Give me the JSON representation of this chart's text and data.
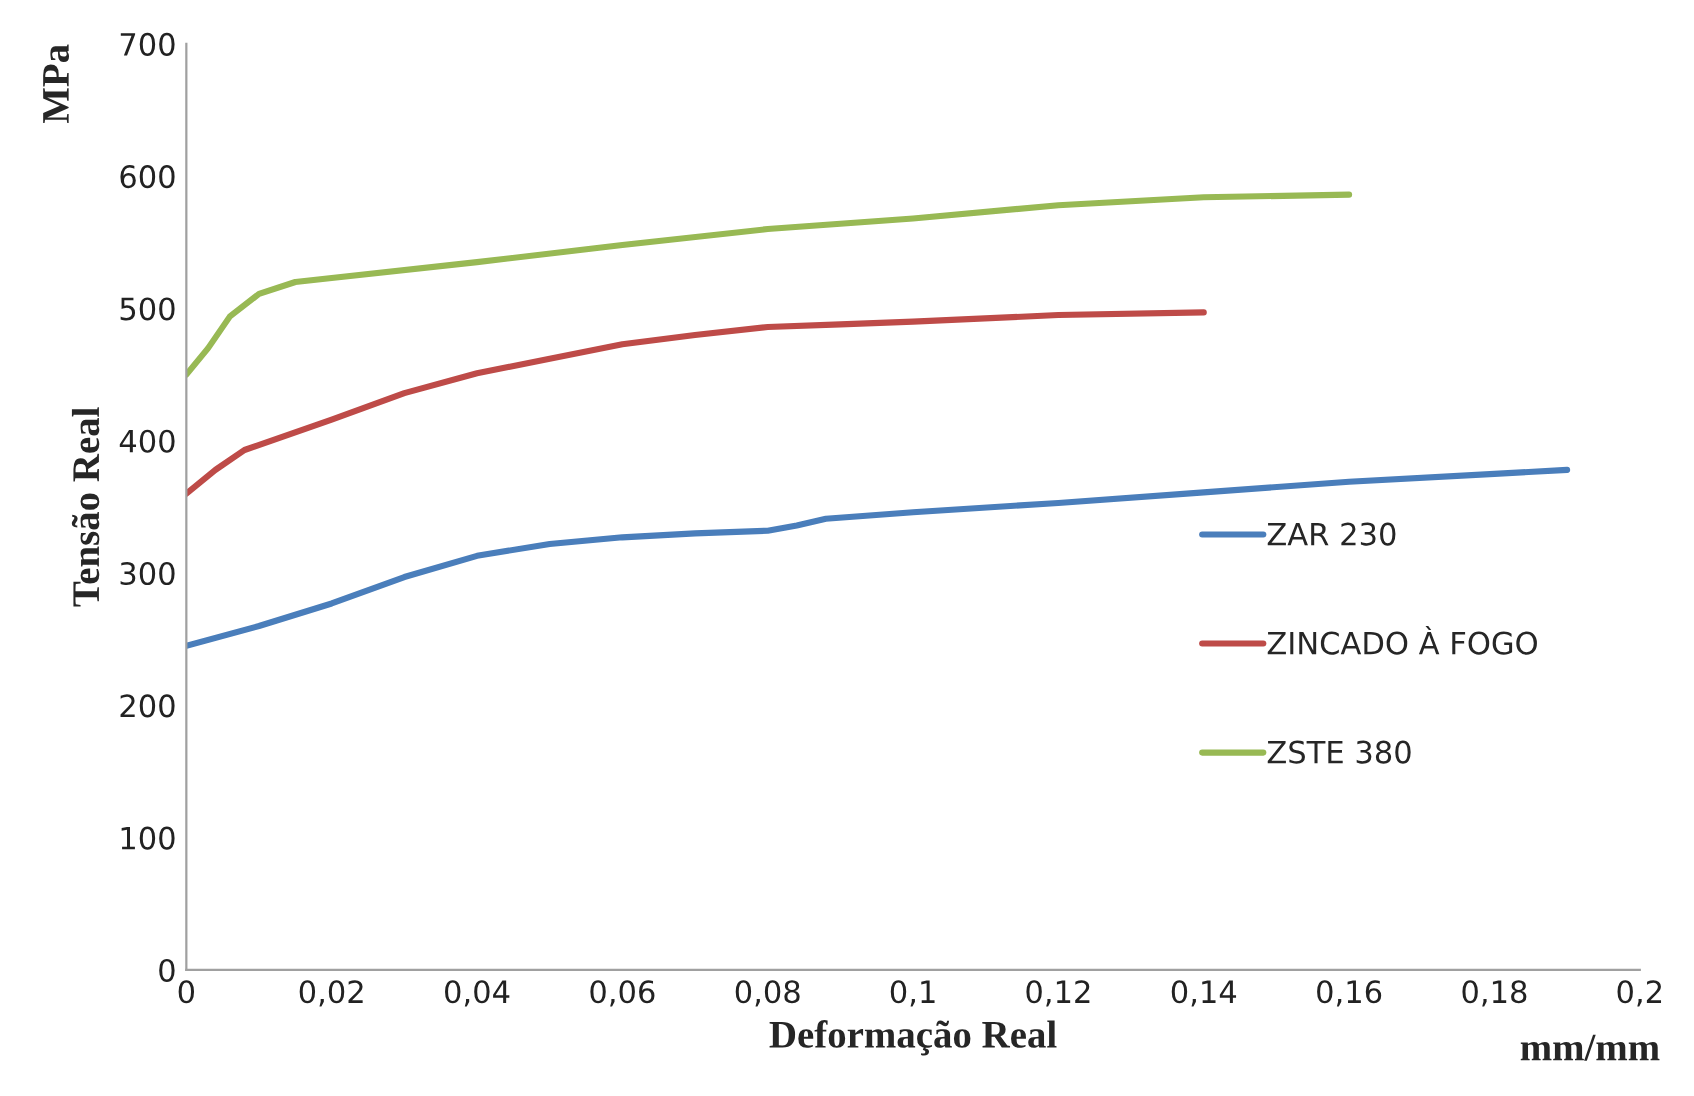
{
  "chart_data": {
    "type": "line",
    "xlabel": "Deformação Real",
    "ylabel": "Tensão Real",
    "annotations": [
      "MPa",
      "mm/mm"
    ],
    "series": [
      {
        "name": "ZAR 230",
        "color": "#4a7ebb",
        "x": [
          0,
          0.01,
          0.02,
          0.03,
          0.04,
          0.05,
          0.06,
          0.07,
          0.08,
          0.084,
          0.088,
          0.1,
          0.12,
          0.14,
          0.16,
          0.18,
          0.19
        ],
        "values": [
          245,
          260,
          277,
          297,
          313,
          322,
          327,
          330,
          332,
          336,
          341,
          346,
          353,
          361,
          369,
          375,
          378
        ]
      },
      {
        "name": "ZINCADO À FOGO",
        "color": "#be4b48",
        "x": [
          0,
          0.004,
          0.008,
          0.02,
          0.03,
          0.04,
          0.05,
          0.06,
          0.07,
          0.08,
          0.09,
          0.1,
          0.12,
          0.14
        ],
        "values": [
          360,
          378,
          393,
          416,
          436,
          451,
          462,
          473,
          480,
          486,
          488,
          490,
          495,
          497
        ]
      },
      {
        "name": "ZSTE 380",
        "color": "#98b954",
        "x": [
          0,
          0.003,
          0.006,
          0.01,
          0.015,
          0.02,
          0.04,
          0.06,
          0.08,
          0.1,
          0.12,
          0.14,
          0.16
        ],
        "values": [
          450,
          470,
          494,
          511,
          520,
          523,
          535,
          548,
          560,
          568,
          578,
          584,
          586
        ]
      }
    ],
    "xlim": [
      0,
      0.2
    ],
    "ylim": [
      0,
      700
    ],
    "xticks": [
      0,
      {
        "value": 0.02,
        "label": "0,02"
      },
      {
        "value": 0.04,
        "label": "0,04"
      },
      {
        "value": 0.06,
        "label": "0,06"
      },
      {
        "value": 0.08,
        "label": "0,08"
      },
      {
        "value": 0.1,
        "label": "0,1"
      },
      {
        "value": 0.12,
        "label": "0,12"
      },
      {
        "value": 0.14,
        "label": "0,14"
      },
      {
        "value": 0.16,
        "label": "0,16"
      },
      {
        "value": 0.18,
        "label": "0,18"
      },
      {
        "value": 0.2,
        "label": "0,2"
      }
    ],
    "yticks": [
      0,
      100,
      200,
      300,
      400,
      500,
      600,
      700
    ],
    "grid": false,
    "legend": "right",
    "line_style": "solid",
    "marker": "none"
  }
}
